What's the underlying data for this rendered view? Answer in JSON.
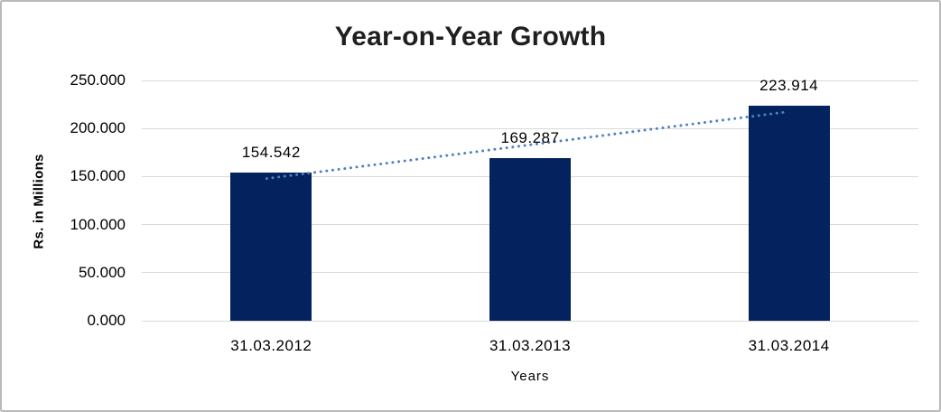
{
  "chart_data": {
    "type": "bar",
    "title": "Year-on-Year Growth",
    "categories": [
      "31.03.2012",
      "31.03.2013",
      "31.03.2014"
    ],
    "values": [
      154.542,
      169.287,
      223.914
    ],
    "value_labels": [
      "154.542",
      "169.287",
      "223.914"
    ],
    "xlabel": "Years",
    "ylabel": "Rs. in Millions",
    "ylim": [
      0,
      250
    ],
    "ytick_step": 50,
    "ytick_labels": [
      "0.000",
      "50.000",
      "100.000",
      "150.000",
      "200.000",
      "250.000"
    ],
    "grid": true,
    "legend": "none",
    "bar_color": "#04235e",
    "gridline_color": "#d9d9d9",
    "trendline": {
      "type": "linear",
      "style": "dotted",
      "color": "#4f81bd"
    }
  }
}
